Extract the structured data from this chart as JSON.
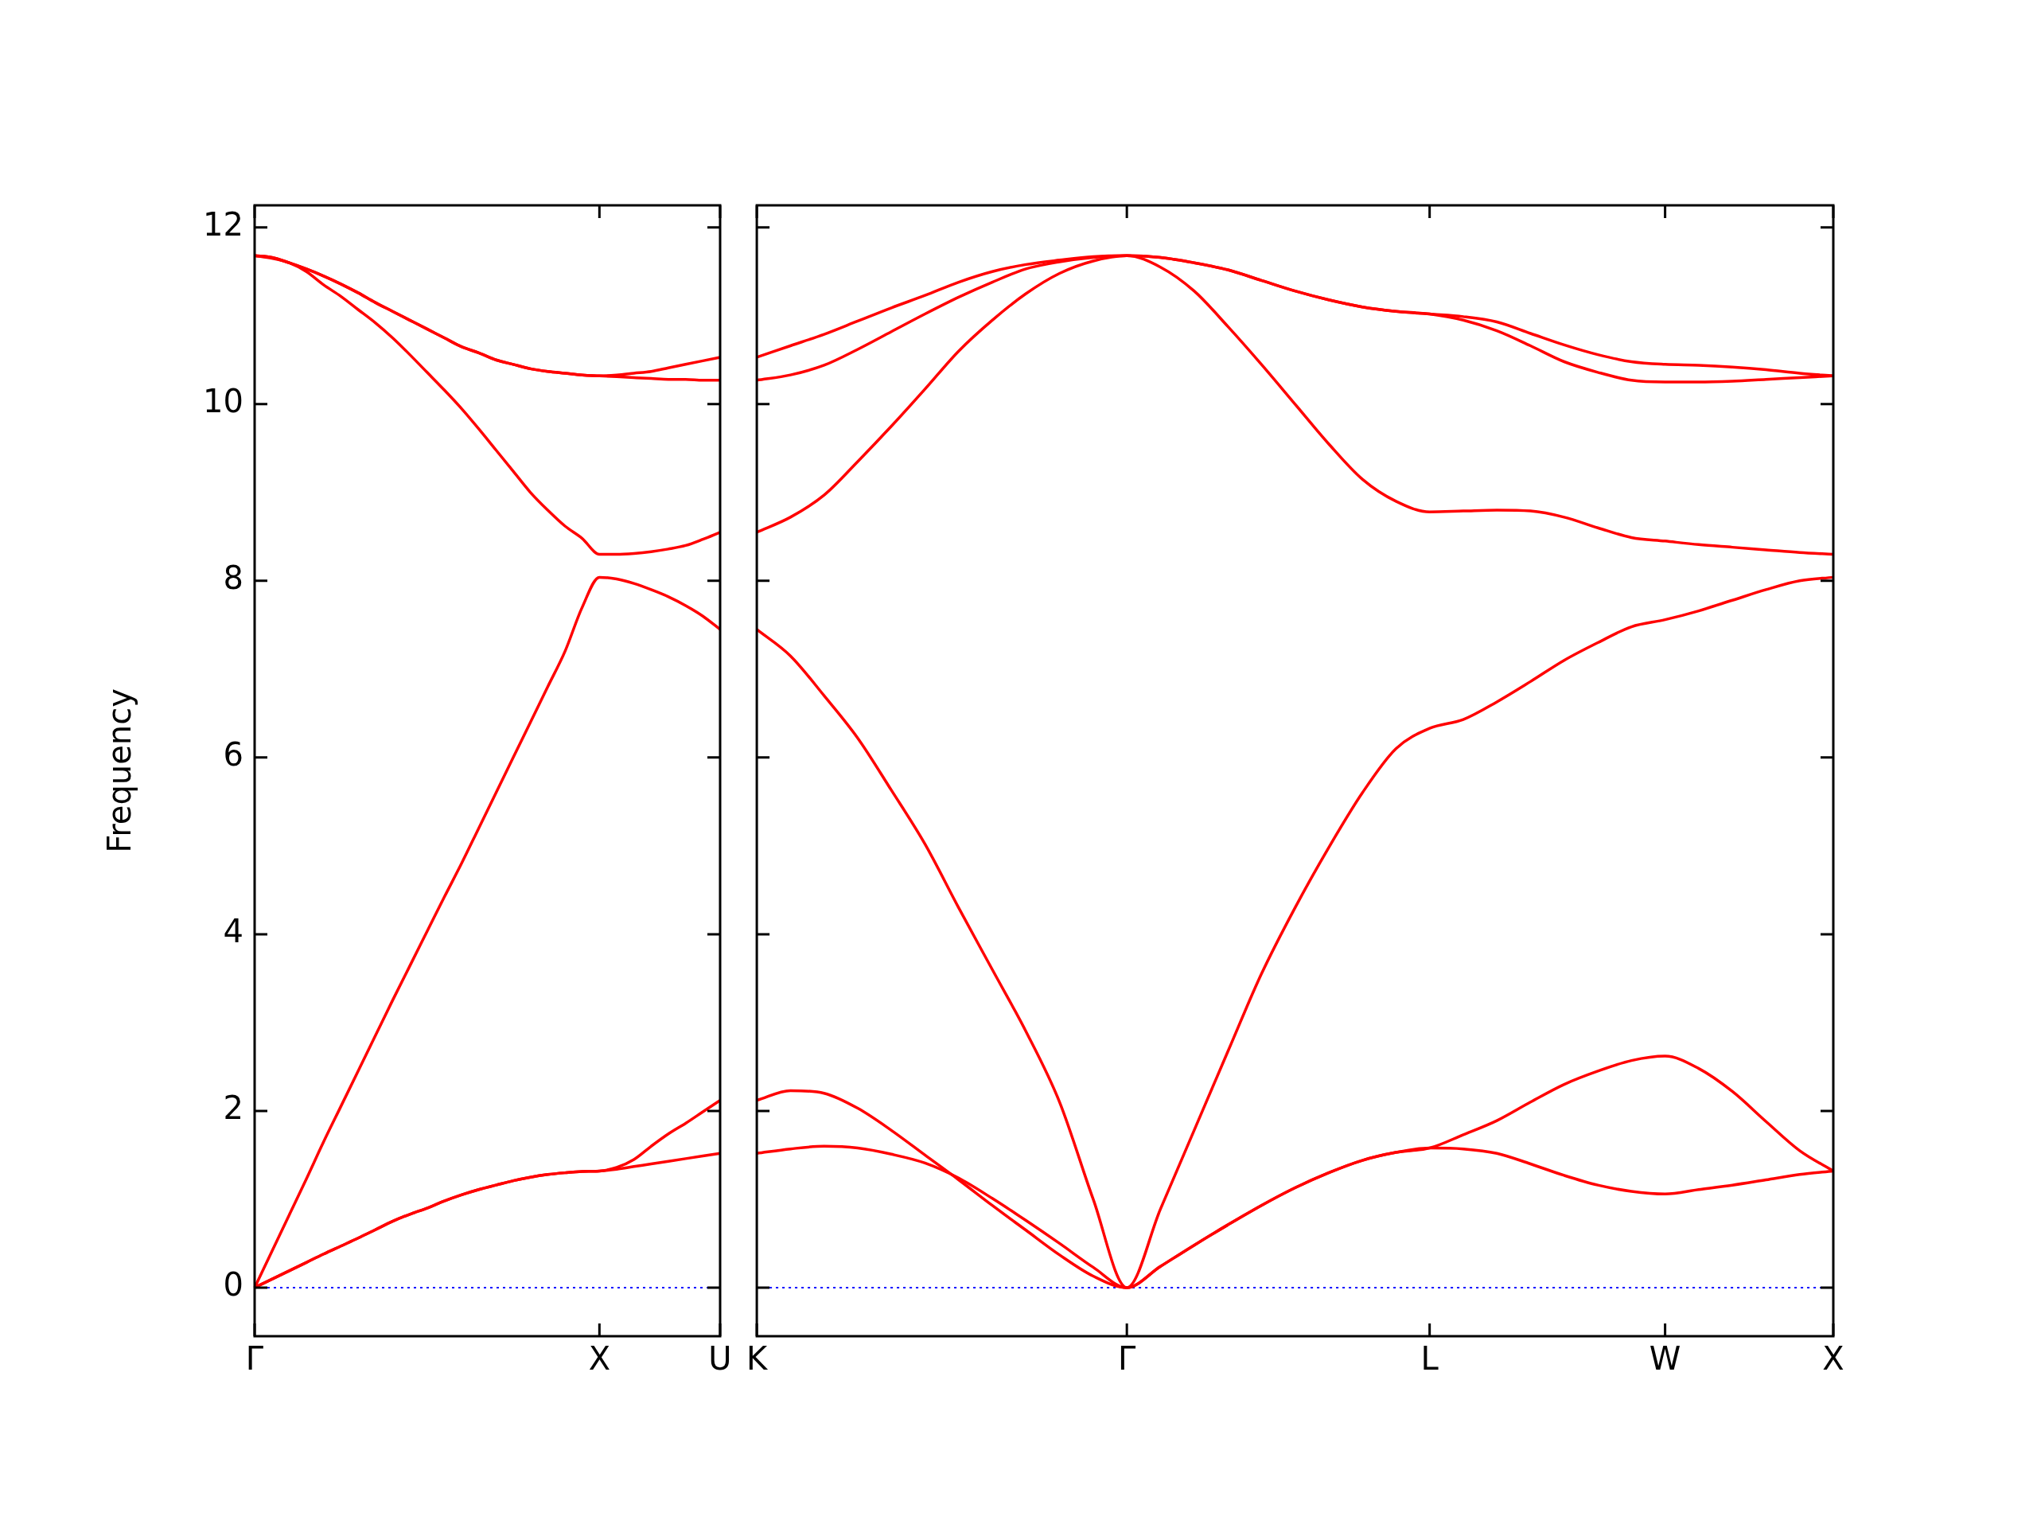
{
  "chart_data": [
    {
      "type": "line",
      "ylabel": "Frequency",
      "ylim": [
        -0.55,
        12.25
      ],
      "yticks": [
        0,
        2,
        4,
        6,
        8,
        10,
        12
      ],
      "categories": [
        "Γ",
        null,
        null,
        null,
        null,
        null,
        null,
        null,
        null,
        null,
        null,
        null,
        null,
        null,
        null,
        null,
        null,
        null,
        null,
        null,
        "X",
        null,
        null,
        null,
        null,
        null,
        null,
        "U"
      ],
      "ref_lines": [
        {
          "axis": "y",
          "value": 0,
          "color": "#0000ff",
          "line_style": "dotted"
        }
      ],
      "series": [
        {
          "color": "#ff0000",
          "values": [
            0,
            0.095,
            0.19,
            0.285,
            0.38,
            0.47,
            0.56,
            0.655,
            0.75,
            0.83,
            0.9,
            0.98,
            1.05,
            1.11,
            1.16,
            1.21,
            1.25,
            1.28,
            1.3,
            1.315,
            1.32,
            1.34,
            1.37,
            1.4,
            1.43,
            1.46,
            1.49,
            1.52
          ]
        },
        {
          "color": "#ff0000",
          "values": [
            0,
            0.095,
            0.19,
            0.285,
            0.38,
            0.47,
            0.56,
            0.655,
            0.75,
            0.83,
            0.9,
            0.98,
            1.05,
            1.11,
            1.16,
            1.21,
            1.25,
            1.28,
            1.3,
            1.315,
            1.32,
            1.36,
            1.45,
            1.6,
            1.74,
            1.86,
            1.99,
            2.12
          ]
        },
        {
          "color": "#ff0000",
          "values": [
            0,
            0.41,
            0.82,
            1.23,
            1.65,
            2.05,
            2.45,
            2.85,
            3.25,
            3.64,
            4.03,
            4.42,
            4.8,
            5.2,
            5.6,
            6.0,
            6.4,
            6.8,
            7.2,
            7.7,
            8.04,
            8.02,
            7.97,
            7.9,
            7.82,
            7.72,
            7.6,
            7.45
          ]
        },
        {
          "color": "#ff0000",
          "values": [
            11.68,
            11.65,
            11.6,
            11.5,
            11.35,
            11.22,
            11.07,
            10.92,
            10.75,
            10.56,
            10.36,
            10.16,
            9.95,
            9.72,
            9.48,
            9.24,
            9.0,
            8.8,
            8.62,
            8.48,
            8.3,
            8.3,
            8.31,
            8.33,
            8.36,
            8.4,
            8.47,
            8.55
          ]
        },
        {
          "color": "#ff0000",
          "values": [
            11.68,
            11.66,
            11.6,
            11.53,
            11.45,
            11.36,
            11.26,
            11.15,
            11.05,
            10.95,
            10.85,
            10.75,
            10.65,
            10.58,
            10.5,
            10.45,
            10.4,
            10.37,
            10.35,
            10.33,
            10.32,
            10.31,
            10.3,
            10.29,
            10.28,
            10.28,
            10.27,
            10.27
          ]
        },
        {
          "color": "#ff0000",
          "values": [
            11.68,
            11.66,
            11.6,
            11.53,
            11.45,
            11.36,
            11.26,
            11.15,
            11.05,
            10.95,
            10.85,
            10.75,
            10.65,
            10.58,
            10.5,
            10.45,
            10.4,
            10.37,
            10.35,
            10.33,
            10.32,
            10.33,
            10.35,
            10.37,
            10.41,
            10.45,
            10.49,
            10.53
          ]
        }
      ]
    },
    {
      "type": "line",
      "tick_labels": "x",
      "ylim": [
        -0.55,
        12.25
      ],
      "yticks": [
        0,
        2,
        4,
        6,
        8,
        10,
        12
      ],
      "categories": [
        "K",
        null,
        null,
        null,
        null,
        null,
        null,
        null,
        null,
        null,
        null,
        "Γ",
        null,
        null,
        null,
        null,
        null,
        null,
        null,
        null,
        "L",
        null,
        null,
        null,
        null,
        null,
        null,
        "W",
        null,
        null,
        null,
        null,
        "X"
      ],
      "ref_lines": [
        {
          "axis": "y",
          "value": 0,
          "color": "#0000ff",
          "line_style": "dotted"
        }
      ],
      "series": [
        {
          "color": "#ff0000",
          "values": [
            1.52,
            1.57,
            1.6,
            1.58,
            1.51,
            1.41,
            1.24,
            1.01,
            0.76,
            0.5,
            0.23,
            0,
            0.24,
            0.48,
            0.71,
            0.93,
            1.13,
            1.3,
            1.44,
            1.53,
            1.58,
            1.57,
            1.52,
            1.4,
            1.27,
            1.16,
            1.09,
            1.06,
            1.11,
            1.16,
            1.22,
            1.28,
            1.32
          ]
        },
        {
          "color": "#ff0000",
          "values": [
            2.12,
            2.23,
            2.2,
            2.03,
            1.78,
            1.5,
            1.22,
            0.93,
            0.65,
            0.37,
            0.13,
            0,
            0.24,
            0.48,
            0.71,
            0.93,
            1.13,
            1.3,
            1.44,
            1.53,
            1.58,
            1.73,
            1.89,
            2.1,
            2.3,
            2.45,
            2.57,
            2.62,
            2.48,
            2.22,
            1.88,
            1.55,
            1.32
          ]
        },
        {
          "color": "#ff0000",
          "values": [
            7.45,
            7.15,
            6.7,
            6.22,
            5.63,
            5.02,
            4.3,
            3.6,
            2.9,
            2.1,
            1.0,
            0,
            0.89,
            1.78,
            2.67,
            3.55,
            4.3,
            4.98,
            5.6,
            6.1,
            6.33,
            6.43,
            6.63,
            6.86,
            7.1,
            7.3,
            7.48,
            7.56,
            7.66,
            7.78,
            7.9,
            8.0,
            8.04
          ]
        },
        {
          "color": "#ff0000",
          "values": [
            8.55,
            8.72,
            8.97,
            9.35,
            9.75,
            10.17,
            10.6,
            10.95,
            11.25,
            11.48,
            11.62,
            11.68,
            11.55,
            11.28,
            10.88,
            10.45,
            10.0,
            9.55,
            9.15,
            8.9,
            8.78,
            8.79,
            8.8,
            8.79,
            8.72,
            8.6,
            8.49,
            8.45,
            8.41,
            8.38,
            8.35,
            8.32,
            8.3
          ]
        },
        {
          "color": "#ff0000",
          "values": [
            10.27,
            10.33,
            10.44,
            10.62,
            10.82,
            11.02,
            11.21,
            11.38,
            11.53,
            11.61,
            11.66,
            11.68,
            11.66,
            11.6,
            11.52,
            11.4,
            11.28,
            11.18,
            11.1,
            11.05,
            11.02,
            10.95,
            10.83,
            10.66,
            10.48,
            10.36,
            10.27,
            10.25,
            10.25,
            10.26,
            10.28,
            10.3,
            10.32
          ]
        },
        {
          "color": "#ff0000",
          "values": [
            10.53,
            10.66,
            10.79,
            10.94,
            11.09,
            11.23,
            11.38,
            11.5,
            11.58,
            11.63,
            11.67,
            11.68,
            11.66,
            11.6,
            11.52,
            11.4,
            11.28,
            11.18,
            11.1,
            11.05,
            11.02,
            10.99,
            10.93,
            10.8,
            10.67,
            10.56,
            10.48,
            10.45,
            10.44,
            10.42,
            10.39,
            10.35,
            10.32
          ]
        }
      ]
    }
  ]
}
